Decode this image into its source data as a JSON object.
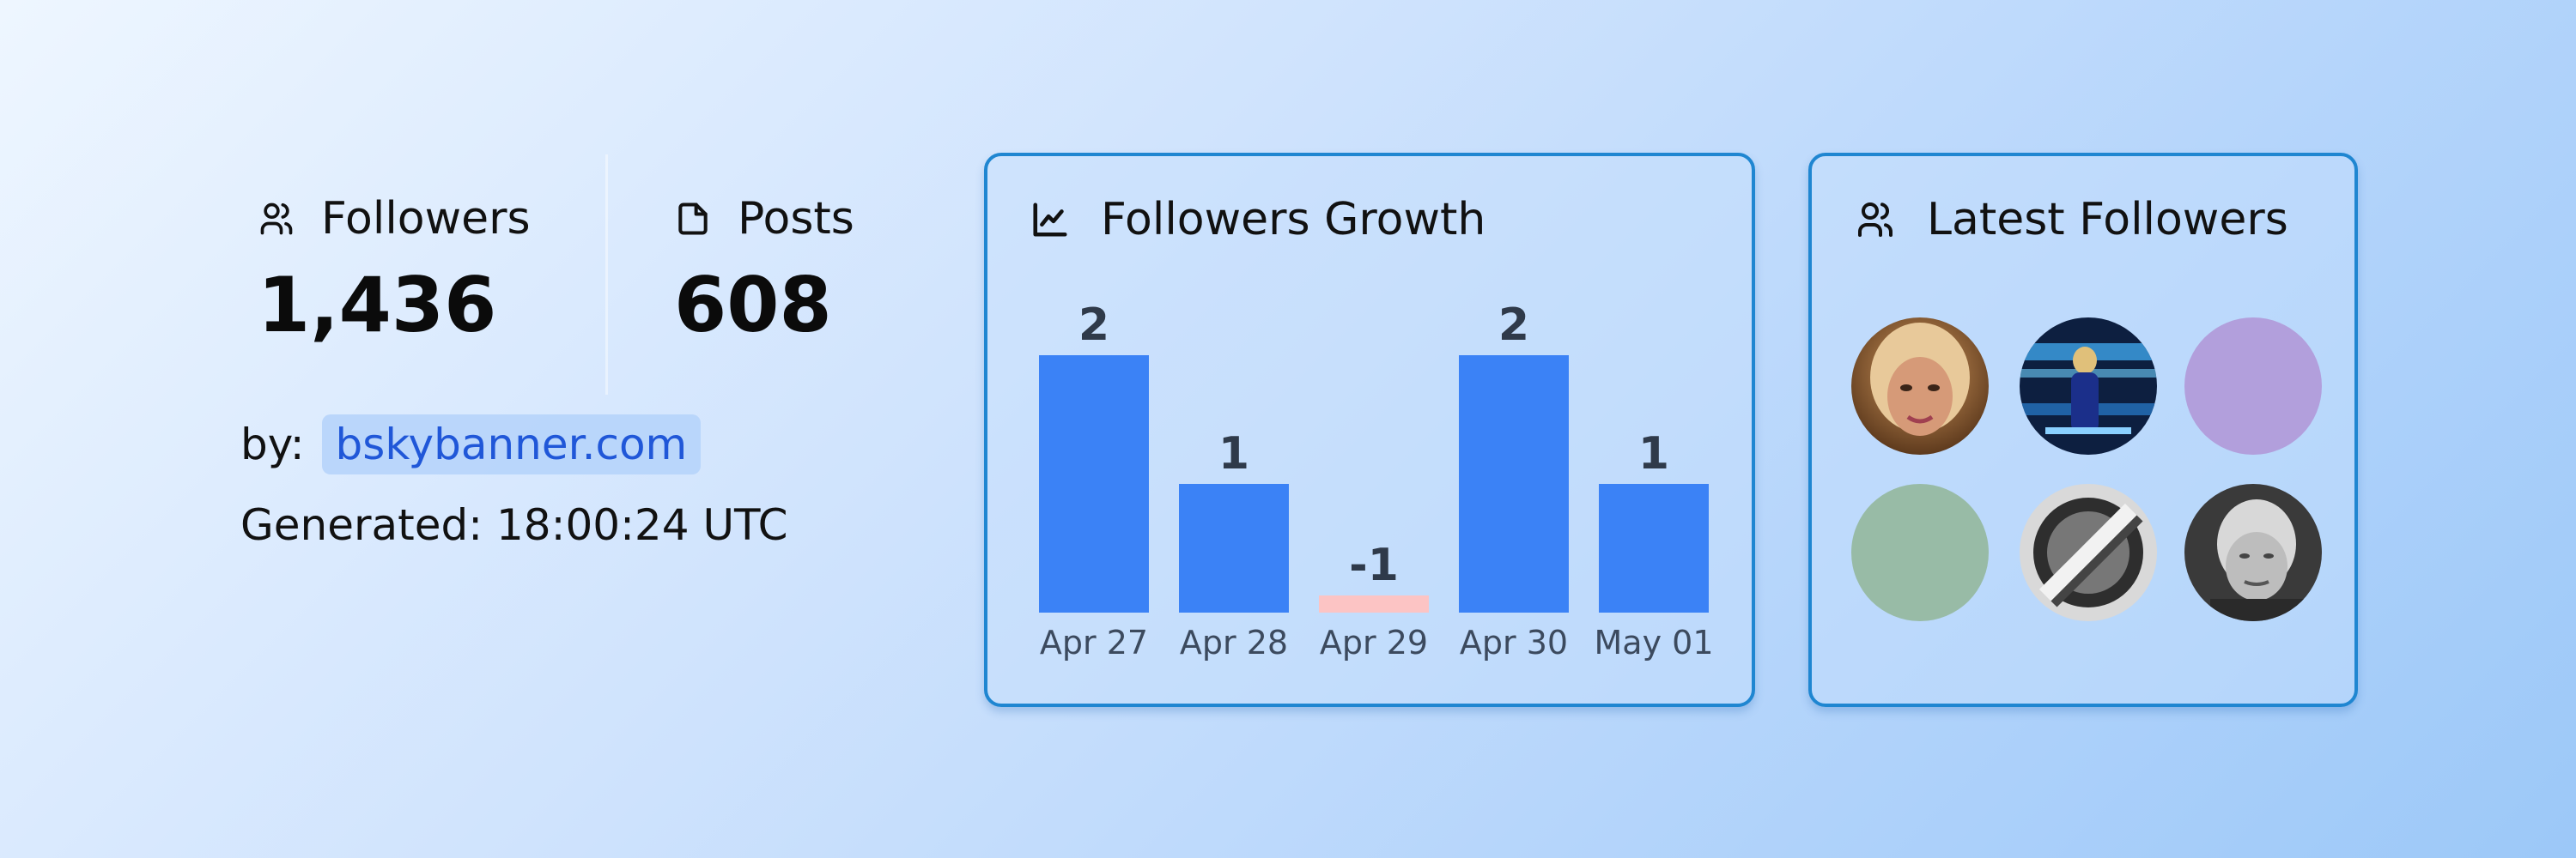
{
  "stats": {
    "followers_label": "Followers",
    "followers_value": "1,436",
    "posts_label": "Posts",
    "posts_value": "608"
  },
  "byline": {
    "prefix": "by:",
    "link": "bskybanner.com"
  },
  "generated": "Generated: 18:00:24 UTC",
  "growth_card": {
    "title": "Followers Growth",
    "icon": "chart-line-icon"
  },
  "latest_card": {
    "title": "Latest Followers",
    "icon": "users-icon",
    "avatars": [
      {
        "kind": "photo-woman-blonde",
        "color": "#a8763e"
      },
      {
        "kind": "photo-stage-blue",
        "color": "#1c3a6e"
      },
      {
        "kind": "placeholder",
        "color": "#b29fdc"
      },
      {
        "kind": "placeholder",
        "color": "#98bba6"
      },
      {
        "kind": "photo-blurred-logo",
        "color": "#3a3a3a"
      },
      {
        "kind": "photo-man-grayscale",
        "color": "#9a9a9a"
      }
    ]
  },
  "colors": {
    "bar_positive": "#3b82f6",
    "bar_negative": "#fcc4c4",
    "card_border": "#1f86d1",
    "link_text": "#2057d8"
  },
  "chart_data": {
    "type": "bar",
    "categories": [
      "Apr 27",
      "Apr 28",
      "Apr 29",
      "Apr 30",
      "May 01"
    ],
    "values": [
      2,
      1,
      -1,
      2,
      1
    ],
    "title": "Followers Growth",
    "xlabel": "",
    "ylabel": "",
    "grid": false
  }
}
